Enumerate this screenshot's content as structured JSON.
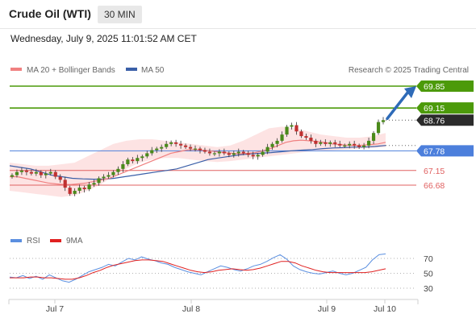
{
  "header": {
    "title": "Crude Oil (WTI)",
    "timeframe": "30 MIN"
  },
  "datetime": "Wednesday, July 9, 2025 11:01:52 AM CET",
  "legend": {
    "ma20_label": "MA 20 + Bollinger Bands",
    "ma50_label": "MA 50",
    "credit": "Research © 2025 Trading Central"
  },
  "colors": {
    "ma20": "#f08080",
    "ma50": "#3a5fa8",
    "bollinger_fill": "#fde0e0",
    "resistance": "#4c9a0a",
    "support": "#4c7fdc",
    "support_red": "#e06060",
    "arrow": "#2e6bb8",
    "rsi": "#5b8fe0",
    "rsi_ma": "#e02020",
    "candle_up": "#4a8a1a",
    "candle_down": "#c03030"
  },
  "indicator_legend": {
    "rsi_label": "RSI",
    "ma9_label": "9MA"
  },
  "x_labels": [
    "Jul 7",
    "Jul 8",
    "Jul 9",
    "Jul 10"
  ],
  "chart_data": [
    {
      "type": "candlestick",
      "title": "Crude Oil (WTI)",
      "timeframe": "30 MIN",
      "levels": [
        {
          "value": 69.85,
          "kind": "resistance",
          "color": "#4c9a0a",
          "tag_style": "filled-green"
        },
        {
          "value": 69.15,
          "kind": "resistance",
          "color": "#4c9a0a",
          "tag_style": "filled-green"
        },
        {
          "value": 68.76,
          "kind": "last",
          "color": "#333333",
          "tag_style": "filled-dark"
        },
        {
          "value": 67.78,
          "kind": "pivot",
          "color": "#4c7fdc",
          "tag_style": "filled-blue"
        },
        {
          "value": 67.15,
          "kind": "support",
          "color": "#e06060",
          "tag_style": "text-red"
        },
        {
          "value": 66.68,
          "kind": "support",
          "color": "#e06060",
          "tag_style": "text-red"
        }
      ],
      "arrow": {
        "from": 68.76,
        "to": 69.85,
        "direction": "up"
      },
      "price_range_estimate": [
        66.0,
        70.0
      ],
      "close_series": [
        67.0,
        67.1,
        67.15,
        67.1,
        67.05,
        67.1,
        67.0,
        67.05,
        67.1,
        66.95,
        66.85,
        66.6,
        66.4,
        66.5,
        66.6,
        66.55,
        66.7,
        66.75,
        66.9,
        66.95,
        67.0,
        67.1,
        67.2,
        67.35,
        67.5,
        67.45,
        67.55,
        67.6,
        67.7,
        67.8,
        67.85,
        67.9,
        68.0,
        68.05,
        68.0,
        67.95,
        67.9,
        67.85,
        67.85,
        67.8,
        67.75,
        67.7,
        67.7,
        67.75,
        67.7,
        67.65,
        67.7,
        67.75,
        67.7,
        67.65,
        67.6,
        67.65,
        67.75,
        67.9,
        68.0,
        68.1,
        68.3,
        68.55,
        68.6,
        68.4,
        68.25,
        68.2,
        68.1,
        68.0,
        68.05,
        68.0,
        68.05,
        68.0,
        67.95,
        67.95,
        68.0,
        67.95,
        67.9,
        67.95,
        68.1,
        68.35,
        68.7,
        68.76
      ],
      "ma20_series": [
        66.95,
        66.95,
        66.9,
        66.85,
        66.8,
        66.75,
        66.72,
        66.7,
        66.7,
        66.72,
        66.75,
        66.8,
        66.85,
        66.9,
        67.0,
        67.1,
        67.2,
        67.3,
        67.4,
        67.5,
        67.6,
        67.7,
        67.75,
        67.8,
        67.82,
        67.8,
        67.78,
        67.75,
        67.72,
        67.7,
        67.68,
        67.7,
        67.72,
        67.78,
        67.85,
        67.95,
        68.05,
        68.1,
        68.12,
        68.1,
        68.08,
        68.05,
        68.0,
        67.98,
        67.96,
        67.95,
        67.96,
        67.98,
        68.0,
        68.05
      ],
      "ma50_series": [
        67.3,
        67.25,
        67.2,
        67.1,
        67.0,
        66.95,
        66.9,
        66.88,
        66.87,
        66.87,
        66.9,
        66.95,
        67.0,
        67.05,
        67.1,
        67.15,
        67.2,
        67.3,
        67.4,
        67.5,
        67.55,
        67.6,
        67.65,
        67.68,
        67.7,
        67.72,
        67.75,
        67.78,
        67.8,
        67.82,
        67.85,
        67.87,
        67.88,
        67.9,
        67.9,
        67.92,
        67.95
      ],
      "bollinger_upper": [
        67.4,
        67.35,
        67.3,
        67.3,
        67.35,
        67.4,
        67.6,
        67.8,
        68.0,
        68.1,
        68.15,
        68.15,
        68.1,
        68.05,
        68.0,
        67.95,
        67.9,
        67.95,
        68.1,
        68.3,
        68.5,
        68.55,
        68.5,
        68.4,
        68.3,
        68.25,
        68.2,
        68.2,
        68.25,
        68.35
      ],
      "bollinger_lower": [
        66.5,
        66.45,
        66.4,
        66.35,
        66.3,
        66.35,
        66.5,
        66.7,
        66.95,
        67.2,
        67.4,
        67.5,
        67.55,
        67.55,
        67.5,
        67.45,
        67.42,
        67.45,
        67.5,
        67.55,
        67.6,
        67.65,
        67.7,
        67.75,
        67.78,
        67.8,
        67.82,
        67.85,
        67.87,
        67.9
      ]
    },
    {
      "type": "line",
      "title": "RSI",
      "y_ticks": [
        70,
        50,
        30
      ],
      "ylim": [
        20,
        80
      ],
      "series": [
        {
          "name": "RSI",
          "color": "#5b8fe0",
          "values": [
            45,
            44,
            47,
            43,
            46,
            42,
            48,
            44,
            40,
            38,
            42,
            47,
            52,
            55,
            58,
            62,
            60,
            65,
            70,
            68,
            72,
            69,
            67,
            64,
            62,
            58,
            55,
            52,
            50,
            48,
            52,
            56,
            60,
            58,
            55,
            53,
            56,
            60,
            62,
            66,
            71,
            75,
            69,
            60,
            55,
            52,
            50,
            49,
            51,
            53,
            50,
            48,
            50,
            54,
            58,
            68,
            75,
            76
          ]
        },
        {
          "name": "9MA",
          "color": "#e02020",
          "values": [
            44,
            44,
            44,
            45,
            45,
            44,
            44,
            43,
            42,
            42,
            44,
            47,
            51,
            54,
            58,
            61,
            63,
            65,
            67,
            68,
            68,
            67,
            66,
            63,
            60,
            57,
            54,
            52,
            51,
            52,
            54,
            55,
            56,
            55,
            54,
            55,
            57,
            60,
            63,
            66,
            66,
            64,
            60,
            57,
            54,
            52,
            51,
            51,
            51,
            51,
            51,
            51,
            52,
            54,
            56
          ]
        }
      ]
    }
  ]
}
